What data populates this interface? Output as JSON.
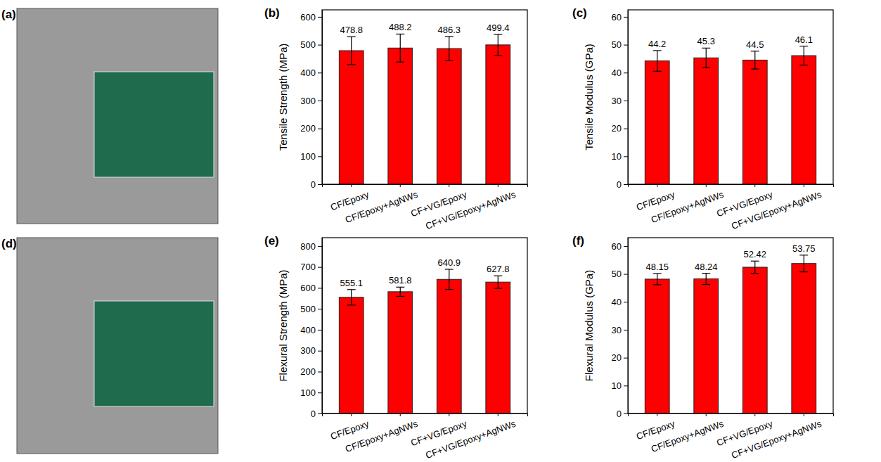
{
  "photo_panels": [
    "(a)",
    "(d)"
  ],
  "chart_data": [
    {
      "panel": "(b)",
      "type": "bar",
      "y_label": "Tensile Strength (MPa)",
      "categories": [
        "CF/Epoxy",
        "CF/Epoxy+AgNWs",
        "CF+VG/Epoxy",
        "CF+VG/Epoxy+AgNWs"
      ],
      "values": [
        478.8,
        488.2,
        486.3,
        499.4
      ],
      "errors": [
        50,
        50,
        43,
        38
      ],
      "color": "#ff0000",
      "ylim": [
        0,
        625
      ],
      "yticks": [
        0,
        100,
        200,
        300,
        400,
        500,
        600
      ],
      "data_labels": true
    },
    {
      "panel": "(c)",
      "type": "bar",
      "y_label": "Tensile Modulus (GPa)",
      "categories": [
        "CF/Epoxy",
        "CF/Epoxy+AgNWs",
        "CF+VG/Epoxy",
        "CF+VG/Epoxy+AgNWs"
      ],
      "values": [
        44.2,
        45.3,
        44.5,
        46.1
      ],
      "errors": [
        3.7,
        3.5,
        3.2,
        3.4
      ],
      "color": "#ff0000",
      "ylim": [
        0,
        62.5
      ],
      "yticks": [
        0,
        10,
        20,
        30,
        40,
        50,
        60
      ],
      "data_labels": true
    },
    {
      "panel": "(e)",
      "type": "bar",
      "y_label": "Flexural Strength (MPa)",
      "categories": [
        "CF/Epoxy",
        "CF/Epoxy+AgNWs",
        "CF+VG/Epoxy",
        "CF+VG/Epoxy+AgNWs"
      ],
      "values": [
        555.1,
        581.8,
        640.9,
        627.8
      ],
      "errors": [
        37,
        22,
        48,
        30
      ],
      "color": "#ff0000",
      "ylim": [
        0,
        840
      ],
      "yticks": [
        0,
        100,
        200,
        300,
        400,
        500,
        600,
        700,
        800
      ],
      "data_labels": true
    },
    {
      "panel": "(f)",
      "type": "bar",
      "y_label": "Flexural Modulus (GPa)",
      "categories": [
        "CF/Epoxy",
        "CF/Epoxy+AgNWs",
        "CF+VG/Epoxy",
        "CF+VG/Epoxy+AgNWs"
      ],
      "values": [
        48.15,
        48.24,
        52.42,
        53.75
      ],
      "errors": [
        2.0,
        2.0,
        2.2,
        3.0
      ],
      "color": "#ff0000",
      "ylim": [
        0,
        63
      ],
      "yticks": [
        0,
        10,
        20,
        30,
        40,
        50,
        60
      ],
      "data_labels": true
    }
  ]
}
